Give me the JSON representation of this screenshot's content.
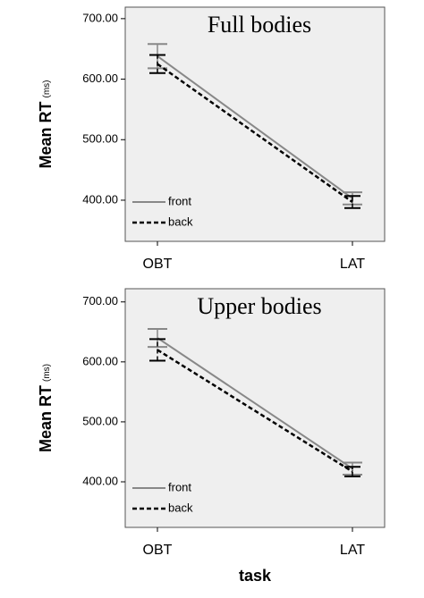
{
  "chart_data": [
    {
      "type": "line",
      "title": "Full bodies",
      "ylabel": "Mean RT",
      "ylabel_unit": "(ms)",
      "categories": [
        "OBT",
        "LAT"
      ],
      "series": [
        {
          "name": "front",
          "color": "#888888",
          "style": "solid",
          "values": [
            638,
            403
          ],
          "errors": [
            20,
            10
          ]
        },
        {
          "name": "back",
          "color": "#000000",
          "style": "dashed",
          "values": [
            625,
            397
          ],
          "errors": [
            15,
            10
          ]
        }
      ],
      "ylim": [
        332,
        719
      ],
      "yticks": [
        {
          "value": 400,
          "label": "400.00"
        },
        {
          "value": 500,
          "label": "500.00"
        },
        {
          "value": 600,
          "label": "600.00"
        },
        {
          "value": 700,
          "label": "700.00"
        }
      ],
      "legend": "lower left"
    },
    {
      "type": "line",
      "title": "Upper bodies",
      "ylabel": "Mean RT",
      "ylabel_unit": "(ms)",
      "xlabel": "task",
      "categories": [
        "OBT",
        "LAT"
      ],
      "series": [
        {
          "name": "front",
          "color": "#888888",
          "style": "solid",
          "values": [
            640,
            422
          ],
          "errors": [
            15,
            10
          ]
        },
        {
          "name": "back",
          "color": "#000000",
          "style": "dashed",
          "values": [
            620,
            417
          ],
          "errors": [
            18,
            8
          ]
        }
      ],
      "ylim": [
        324,
        722
      ],
      "yticks": [
        {
          "value": 400,
          "label": "400.00"
        },
        {
          "value": 500,
          "label": "500.00"
        },
        {
          "value": 600,
          "label": "600.00"
        },
        {
          "value": 700,
          "label": "700.00"
        }
      ],
      "legend": "lower left"
    }
  ]
}
